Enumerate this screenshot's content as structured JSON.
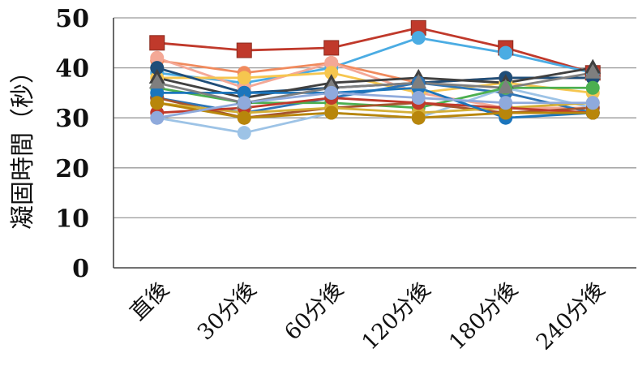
{
  "chart_data": {
    "type": "line",
    "title": "",
    "xlabel": "",
    "ylabel": "凝固時間（秒）",
    "categories": [
      "直後",
      "30分後",
      "60分後",
      "120分後",
      "180分後",
      "240分後"
    ],
    "ylim": [
      0,
      50
    ],
    "yticks": [
      0,
      10,
      20,
      30,
      40,
      50
    ],
    "grid": "horizontal",
    "legend": "none",
    "series": [
      {
        "color": "#C0392B",
        "marker": "square",
        "values": [
          45,
          43.5,
          44,
          48,
          44,
          39
        ]
      },
      {
        "color": "#4BACE3",
        "marker": "circle",
        "values": [
          39,
          37,
          40,
          46,
          43,
          39
        ]
      },
      {
        "color": "#F08A5D",
        "marker": "circle",
        "values": [
          41.5,
          39,
          41,
          37,
          38,
          38
        ]
      },
      {
        "color": "#F4A896",
        "marker": "circle",
        "values": [
          42,
          36,
          41,
          35,
          32,
          32
        ]
      },
      {
        "color": "#F6C64F",
        "marker": "circle",
        "values": [
          38,
          38,
          39,
          35,
          37,
          35
        ]
      },
      {
        "color": "#1F4E79",
        "marker": "circle",
        "values": [
          40,
          35,
          36,
          37,
          38,
          38
        ]
      },
      {
        "color": "#404040",
        "marker": "triangle",
        "values": [
          38,
          34,
          37,
          38,
          37,
          40
        ]
      },
      {
        "color": "#2E75B6",
        "marker": "circle",
        "values": [
          34,
          31,
          34,
          37,
          35,
          31
        ]
      },
      {
        "color": "#9DC3E6",
        "marker": "circle",
        "values": [
          30,
          27,
          31,
          30,
          36,
          32
        ]
      },
      {
        "color": "#4CAF50",
        "marker": "circle",
        "values": [
          36,
          33,
          33,
          32,
          36,
          36
        ]
      },
      {
        "color": "#A5542D",
        "marker": "circle",
        "values": [
          34,
          30,
          32,
          33,
          31,
          32
        ]
      },
      {
        "color": "#D4AF37",
        "marker": "circle",
        "values": [
          33,
          31,
          32,
          31,
          32,
          33
        ]
      },
      {
        "color": "#C0392B",
        "marker": "circle",
        "values": [
          31,
          32,
          34,
          33,
          32,
          31
        ]
      },
      {
        "color": "#1B75BC",
        "marker": "circle",
        "values": [
          35,
          35,
          35,
          36,
          30,
          31
        ]
      },
      {
        "color": "#7F7F7F",
        "marker": "triangle",
        "values": [
          37,
          33,
          36,
          37,
          36,
          39
        ]
      },
      {
        "color": "#B8860B",
        "marker": "circle",
        "values": [
          33,
          30,
          31,
          30,
          31,
          31
        ]
      },
      {
        "color": "#8FAADC",
        "marker": "circle",
        "values": [
          30,
          33,
          35,
          34,
          33,
          33
        ]
      }
    ]
  }
}
